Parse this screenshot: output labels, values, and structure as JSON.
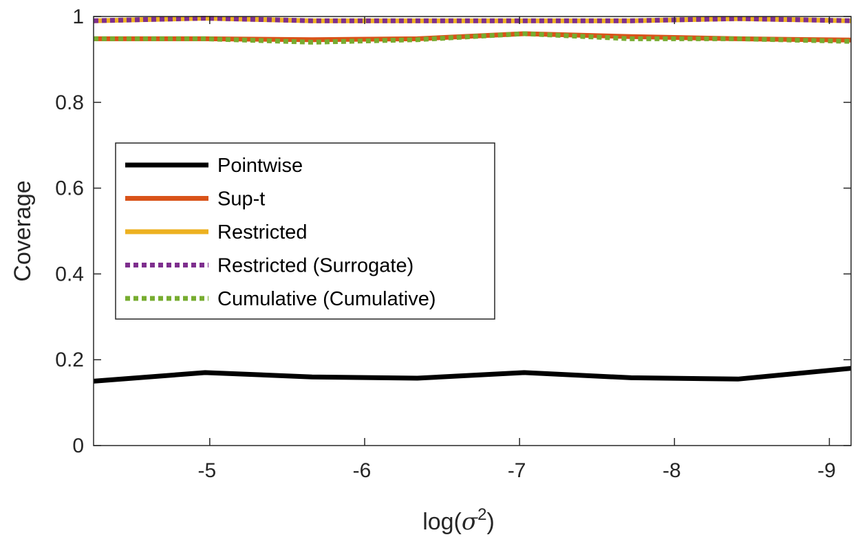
{
  "chart_data": {
    "type": "line",
    "xlabel": "log(σ²)",
    "ylabel": "Coverage",
    "x_reversed": true,
    "xlim": [
      -4.25,
      -9.14
    ],
    "ylim": [
      0,
      1
    ],
    "xticks": [
      -5,
      -6,
      -7,
      -8,
      -9
    ],
    "yticks": [
      0,
      0.2,
      0.4,
      0.6,
      0.8,
      1
    ],
    "ytick_labels": [
      "0",
      "0.2",
      "0.4",
      "0.6",
      "0.8",
      "1"
    ],
    "x": [
      -4.25,
      -4.97,
      -5.66,
      -6.34,
      -7.03,
      -7.72,
      -8.41,
      -9.14
    ],
    "series": [
      {
        "name": "Pointwise",
        "color": "#000000",
        "style": "solid",
        "values": [
          0.15,
          0.17,
          0.16,
          0.157,
          0.17,
          0.158,
          0.155,
          0.18
        ]
      },
      {
        "name": "Sup-t",
        "color": "#D95319",
        "style": "solid",
        "values": [
          0.948,
          0.948,
          0.946,
          0.948,
          0.96,
          0.953,
          0.948,
          0.945
        ]
      },
      {
        "name": "Restricted",
        "color": "#EDB120",
        "style": "solid",
        "values": [
          0.99,
          0.996,
          0.99,
          0.99,
          0.99,
          0.99,
          0.995,
          0.99
        ]
      },
      {
        "name": "Restricted (Surrogate)",
        "color": "#7E2F8E",
        "style": "dotted",
        "values": [
          0.99,
          0.996,
          0.99,
          0.99,
          0.99,
          0.99,
          0.995,
          0.99
        ]
      },
      {
        "name": "Cumulative (Cumulative)",
        "color": "#77AC30",
        "style": "dotted",
        "values": [
          0.948,
          0.948,
          0.94,
          0.946,
          0.96,
          0.948,
          0.948,
          0.942
        ]
      }
    ],
    "legend": "center-left",
    "grid": false
  }
}
